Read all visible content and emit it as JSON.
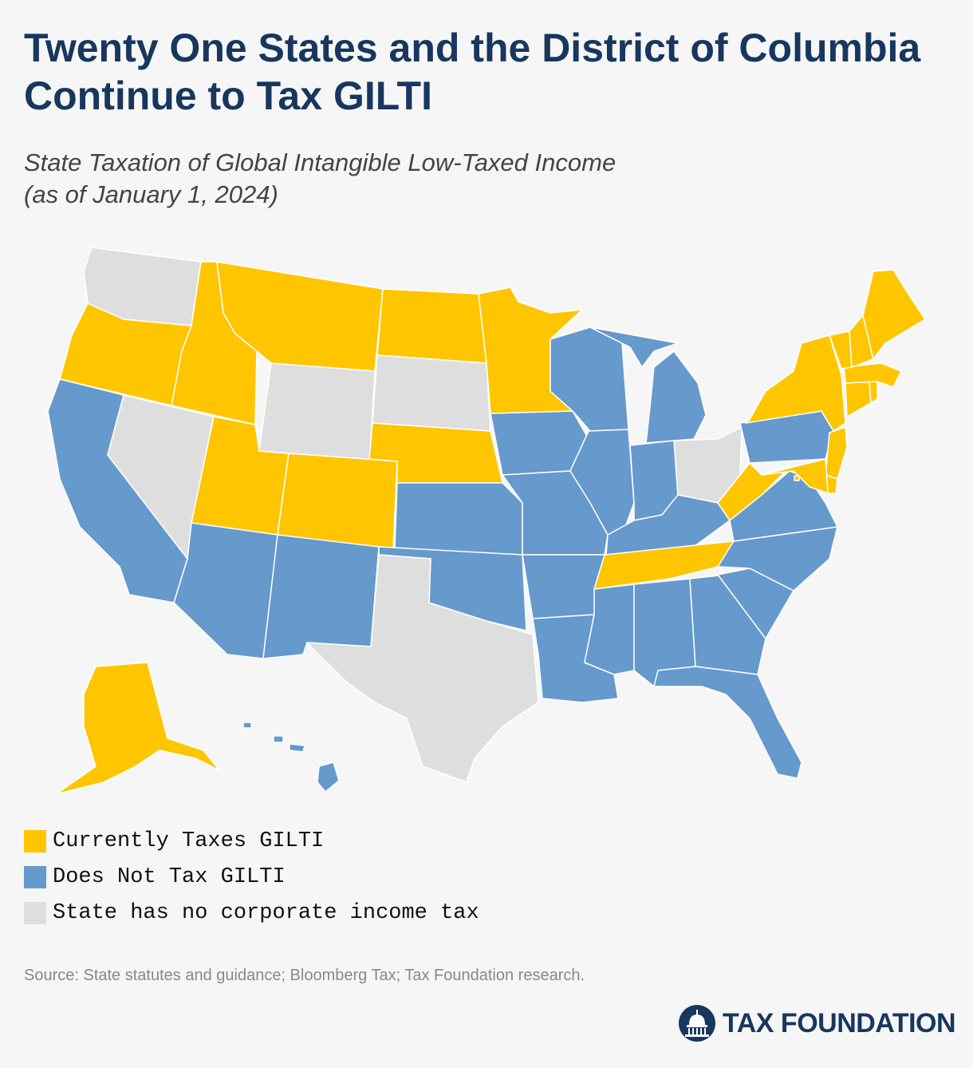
{
  "title": "Twenty One States and the District of Columbia Continue to Tax GILTI",
  "subtitle_line1": "State Taxation of Global Intangible Low-Taxed Income",
  "subtitle_line2": "(as of January 1, 2024)",
  "colors": {
    "taxes": "#ffc600",
    "no_tax": "#6699cc",
    "no_cit": "#dedede",
    "border": "#ffffff",
    "title": "#17375e"
  },
  "legend": [
    {
      "key": "taxes",
      "label": "Currently Taxes GILTI",
      "color": "#ffc600"
    },
    {
      "key": "no_tax",
      "label": "Does Not Tax GILTI",
      "color": "#6699cc"
    },
    {
      "key": "no_cit",
      "label": "State has no corporate income tax",
      "color": "#dedede"
    }
  ],
  "map_data": {
    "taxes": [
      "AK",
      "OR",
      "ID",
      "MT",
      "ND",
      "MN",
      "UT",
      "CO",
      "NE",
      "TN",
      "WV",
      "NY",
      "ME",
      "VT",
      "NH",
      "MA",
      "RI",
      "CT",
      "NJ",
      "DE",
      "MD",
      "DC"
    ],
    "no_tax": [
      "CA",
      "AZ",
      "NM",
      "KS",
      "OK",
      "IA",
      "MO",
      "AR",
      "LA",
      "WI",
      "IL",
      "MI",
      "IN",
      "KY",
      "MS",
      "AL",
      "GA",
      "FL",
      "SC",
      "NC",
      "VA",
      "PA",
      "HI"
    ],
    "no_cit": [
      "WA",
      "NV",
      "WY",
      "SD",
      "TX",
      "OH"
    ]
  },
  "source": "Source: State statutes and guidance; Bloomberg Tax; Tax Foundation research.",
  "logo_text": "TAX FOUNDATION"
}
